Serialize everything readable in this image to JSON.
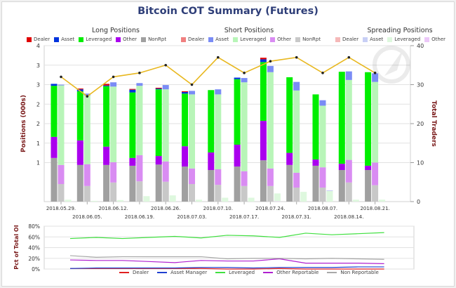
{
  "chart_data": [
    {
      "type": "bar",
      "title": "Bitcoin COT Summary (Futures)",
      "ylabel": "Positions (000s)",
      "y2label": "Total Traders",
      "ylim": [
        0,
        4
      ],
      "y2lim": [
        0,
        40
      ],
      "yticks": [
        "4",
        "3",
        "3",
        "2",
        "2",
        "1",
        "1"
      ],
      "y2ticks": [
        "40",
        "30",
        "20",
        "10",
        "0"
      ],
      "grid": true,
      "categories": [
        "2018.05.29.",
        "2018.06.05.",
        "2018.06.12.",
        "2018.06.19.",
        "2018.06.26.",
        "2018.07.03.",
        "2018.07.10.",
        "2018.07.17.",
        "2018.07.24.",
        "2018.07.31.",
        "2018.08.07.",
        "2018.08.14.",
        "2018.08.21."
      ],
      "groups": [
        {
          "title": "Long Positions",
          "legend": [
            {
              "name": "Dealer",
              "color": "#e00000"
            },
            {
              "name": "Asset",
              "color": "#0033dd"
            },
            {
              "name": "Leveraged",
              "color": "#00ee00"
            },
            {
              "name": "Other",
              "color": "#aa00ee"
            },
            {
              "name": "NonRpt",
              "color": "#a0a0a0"
            }
          ],
          "series": [
            {
              "name": "NonRpt",
              "values": [
                1.12,
                0.94,
                0.94,
                0.92,
                0.95,
                0.9,
                0.81,
                0.9,
                1.06,
                0.94,
                0.92,
                0.81,
                0.81
              ]
            },
            {
              "name": "Other",
              "values": [
                0.54,
                0.63,
                0.47,
                0.2,
                0.22,
                0.52,
                0.45,
                0.56,
                1.01,
                0.31,
                0.16,
                0.16,
                0.11
              ]
            },
            {
              "name": "Leveraged",
              "values": [
                1.31,
                1.26,
                1.55,
                1.68,
                1.71,
                1.35,
                1.6,
                1.68,
                1.51,
                1.94,
                1.67,
                2.36,
                2.4
              ]
            },
            {
              "name": "Asset",
              "values": [
                0.05,
                0.05,
                0.02,
                0.07,
                0.02,
                0.04,
                0.0,
                0.04,
                0.07,
                0.0,
                0.0,
                0.0,
                0.0
              ]
            },
            {
              "name": "Dealer",
              "values": [
                0.0,
                0.02,
                0.04,
                0.02,
                0.02,
                0.02,
                0.0,
                0.0,
                0.04,
                0.0,
                0.0,
                0.0,
                0.0
              ]
            }
          ]
        },
        {
          "title": "Short Positions",
          "legend": [
            {
              "name": "Dealer",
              "color": "#f08080"
            },
            {
              "name": "Asset",
              "color": "#7a8cf5"
            },
            {
              "name": "Leveraged",
              "color": "#b8f5b8"
            },
            {
              "name": "Other",
              "color": "#d98cf2"
            },
            {
              "name": "NonRpt",
              "color": "#c8c8c8"
            }
          ],
          "series": [
            {
              "name": "NonRpt",
              "values": [
                0.45,
                0.4,
                0.49,
                0.52,
                0.51,
                0.45,
                0.43,
                0.4,
                0.4,
                0.36,
                0.36,
                0.49,
                0.42
              ]
            },
            {
              "name": "Other",
              "values": [
                0.49,
                0.56,
                0.52,
                0.67,
                0.52,
                0.4,
                0.4,
                0.38,
                0.45,
                0.38,
                0.52,
                0.58,
                0.58
              ]
            },
            {
              "name": "Leveraged",
              "values": [
                2.04,
                1.76,
                1.94,
                1.78,
                1.85,
                1.9,
                1.92,
                2.28,
                2.47,
                2.11,
                1.58,
                2.05,
                2.07
              ]
            },
            {
              "name": "Asset",
              "values": [
                0.02,
                0.05,
                0.11,
                0.07,
                0.11,
                0.09,
                0.13,
                0.11,
                0.16,
                0.22,
                0.14,
                0.22,
                0.22
              ]
            },
            {
              "name": "Dealer",
              "values": [
                0.0,
                0.0,
                0.0,
                0.0,
                0.0,
                0.0,
                0.0,
                0.0,
                0.0,
                0.0,
                0.0,
                0.0,
                0.0
              ]
            }
          ]
        },
        {
          "title": "Spreading Positions",
          "legend": [
            {
              "name": "Dealer",
              "color": "#f5b8b8"
            },
            {
              "name": "Asset",
              "color": "#c8cff5"
            },
            {
              "name": "Leveraged",
              "color": "#def8de"
            },
            {
              "name": "Other",
              "color": "#ecc8f8"
            }
          ],
          "series": [
            {
              "name": "Dealer",
              "values": [
                0,
                0,
                0,
                0,
                0,
                0,
                0,
                0,
                0,
                0,
                0,
                0,
                0
              ]
            },
            {
              "name": "Asset",
              "values": [
                0,
                0,
                0,
                0,
                0,
                0,
                0,
                0,
                0,
                0,
                0.02,
                0,
                0
              ]
            },
            {
              "name": "Leveraged",
              "values": [
                0.05,
                0.02,
                0.04,
                0.14,
                0.16,
                0.05,
                0.1,
                0.1,
                0.2,
                0.25,
                0.27,
                0.05,
                0.05
              ]
            },
            {
              "name": "Other",
              "values": [
                0,
                0,
                0,
                0,
                0,
                0,
                0,
                0,
                0.01,
                0,
                0,
                0,
                0
              ]
            }
          ]
        }
      ],
      "line": {
        "name": "Total Traders",
        "color": "#e8b820",
        "values": [
          32,
          27,
          32,
          33,
          35,
          30,
          37,
          33,
          36,
          37,
          33,
          37,
          33
        ]
      }
    },
    {
      "type": "line",
      "ylabel": "Pct of Total OI",
      "ylim": [
        0,
        80
      ],
      "yticks": [
        "80%",
        "60%",
        "40%",
        "20%",
        "0%"
      ],
      "categories": [
        "2018.05.29.",
        "2018.06.05.",
        "2018.06.12.",
        "2018.06.19.",
        "2018.06.26.",
        "2018.07.03.",
        "2018.07.10.",
        "2018.07.17.",
        "2018.07.24.",
        "2018.07.31.",
        "2018.08.07.",
        "2018.08.14.",
        "2018.08.21."
      ],
      "series": [
        {
          "name": "Dealer",
          "color": "#e02020",
          "values": [
            1,
            1,
            1,
            1,
            1,
            1,
            0,
            0,
            1,
            0,
            0,
            0,
            0
          ]
        },
        {
          "name": "Asset Manager",
          "color": "#2040d0",
          "values": [
            1,
            2,
            2,
            2,
            2,
            3,
            3,
            2,
            3,
            3,
            3,
            4,
            4
          ]
        },
        {
          "name": "Leveraged",
          "color": "#40e040",
          "values": [
            57,
            59,
            57,
            59,
            61,
            58,
            63,
            62,
            59,
            67,
            64,
            66,
            68
          ]
        },
        {
          "name": "Other Reportable",
          "color": "#b020d0",
          "values": [
            17,
            16,
            16,
            14,
            12,
            16,
            15,
            15,
            19,
            11,
            11,
            11,
            10
          ]
        },
        {
          "name": "Non Reportable",
          "color": "#a8a8a8",
          "values": [
            25,
            22,
            23,
            23,
            23,
            23,
            19,
            20,
            20,
            19,
            20,
            19,
            18
          ]
        }
      ]
    }
  ]
}
